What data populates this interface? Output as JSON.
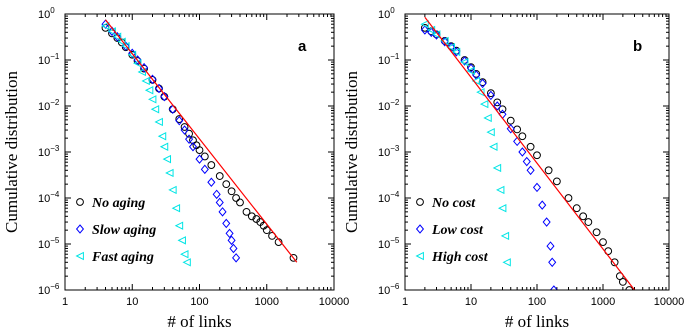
{
  "chart_data": [
    {
      "type": "scatter",
      "panel_label": "a",
      "xlabel": "# of links",
      "ylabel": "Cumulative distribution",
      "xscale": "log",
      "yscale": "log",
      "xlim": [
        1,
        10000
      ],
      "ylim": [
        1e-06,
        1
      ],
      "legend_position": "bottom-left",
      "series": [
        {
          "name": "No aging",
          "marker": "circle",
          "color": "#000000",
          "x": [
            4,
            5,
            6,
            7,
            8,
            10,
            12,
            15,
            20,
            25,
            30,
            40,
            50,
            60,
            70,
            80,
            90,
            100,
            120,
            150,
            200,
            250,
            300,
            350,
            400,
            500,
            600,
            700,
            800,
            900,
            1000,
            1200,
            1500,
            2500
          ],
          "y": [
            0.5,
            0.38,
            0.3,
            0.24,
            0.19,
            0.13,
            0.095,
            0.065,
            0.037,
            0.024,
            0.016,
            0.0085,
            0.0052,
            0.0035,
            0.0025,
            0.0018,
            0.0014,
            0.0011,
            0.0008,
            0.00052,
            0.0003,
            0.0002,
            0.00014,
            0.0001,
            8e-05,
            5e-05,
            4e-05,
            3.5e-05,
            3e-05,
            2.5e-05,
            2e-05,
            1.5e-05,
            1.1e-05,
            5e-06
          ]
        },
        {
          "name": "Slow aging",
          "marker": "diamond",
          "color": "#0000ff",
          "x": [
            4,
            5,
            6,
            8,
            10,
            12,
            15,
            20,
            25,
            30,
            40,
            50,
            60,
            70,
            80,
            100,
            120,
            150,
            180,
            200,
            220,
            250,
            280,
            300,
            320,
            350
          ],
          "y": [
            0.6,
            0.42,
            0.32,
            0.2,
            0.14,
            0.1,
            0.068,
            0.038,
            0.024,
            0.016,
            0.0085,
            0.0048,
            0.003,
            0.0019,
            0.0013,
            0.0007,
            0.00042,
            0.00022,
            0.00012,
            8e-05,
            5e-05,
            2.8e-05,
            1.7e-05,
            1.2e-05,
            8e-06,
            5e-06
          ]
        },
        {
          "name": "Fast aging",
          "marker": "triangle-left",
          "color": "#00e5e5",
          "x": [
            4,
            5,
            6,
            7,
            8,
            10,
            12,
            14,
            16,
            18,
            20,
            22,
            25,
            28,
            30,
            33,
            36,
            40,
            45,
            50,
            55,
            60,
            65
          ],
          "y": [
            0.55,
            0.42,
            0.32,
            0.25,
            0.2,
            0.13,
            0.085,
            0.055,
            0.035,
            0.022,
            0.014,
            0.0085,
            0.0045,
            0.0022,
            0.0013,
            0.0007,
            0.00035,
            0.00015,
            6e-05,
            2.5e-05,
            1.2e-05,
            6e-06,
            4e-06
          ]
        },
        {
          "name": "fit",
          "type": "line",
          "color": "#ff0000",
          "x": [
            4,
            2800
          ],
          "y": [
            0.75,
            4e-06
          ]
        }
      ]
    },
    {
      "type": "scatter",
      "panel_label": "b",
      "xlabel": "# of links",
      "ylabel": "Cumulative distribution",
      "xscale": "log",
      "yscale": "log",
      "xlim": [
        1,
        10000
      ],
      "ylim": [
        1e-06,
        1
      ],
      "legend_position": "bottom-left",
      "series": [
        {
          "name": "No cost",
          "marker": "circle",
          "color": "#000000",
          "x": [
            2,
            2.5,
            3,
            4,
            5,
            6,
            8,
            10,
            12,
            15,
            20,
            25,
            30,
            40,
            50,
            60,
            80,
            100,
            150,
            200,
            300,
            400,
            500,
            600,
            800,
            1000,
            1200,
            1500,
            1800,
            2000,
            2500
          ],
          "y": [
            0.5,
            0.42,
            0.36,
            0.26,
            0.2,
            0.16,
            0.1,
            0.07,
            0.05,
            0.033,
            0.019,
            0.012,
            0.0085,
            0.0048,
            0.0031,
            0.0022,
            0.0013,
            0.00085,
            0.0004,
            0.00023,
            0.0001,
            6e-05,
            4e-05,
            3e-05,
            1.8e-05,
            1.1e-05,
            7e-06,
            4e-06,
            2e-06,
            1.5e-06,
            1e-06
          ]
        },
        {
          "name": "Low cost",
          "marker": "diamond",
          "color": "#0000ff",
          "x": [
            2,
            2.5,
            3,
            4,
            5,
            6,
            8,
            10,
            12,
            15,
            20,
            25,
            30,
            40,
            50,
            60,
            70,
            80,
            100,
            120,
            140,
            160,
            170,
            180
          ],
          "y": [
            0.45,
            0.4,
            0.35,
            0.25,
            0.19,
            0.15,
            0.095,
            0.066,
            0.047,
            0.031,
            0.017,
            0.01,
            0.0066,
            0.0032,
            0.0017,
            0.001,
            0.00062,
            0.0004,
            0.00017,
            7e-05,
            3e-05,
            9e-06,
            4e-06,
            1e-06
          ]
        },
        {
          "name": "High cost",
          "marker": "triangle-left",
          "color": "#00e5e5",
          "x": [
            2,
            2.5,
            3,
            4,
            5,
            6,
            8,
            10,
            12,
            14,
            16,
            18,
            20,
            22,
            25,
            28,
            30,
            33,
            35
          ],
          "y": [
            0.6,
            0.45,
            0.36,
            0.26,
            0.19,
            0.15,
            0.09,
            0.058,
            0.035,
            0.02,
            0.011,
            0.0055,
            0.0027,
            0.0013,
            0.00045,
            0.00015,
            6e-05,
            1.5e-05,
            4e-06
          ]
        },
        {
          "name": "fit",
          "type": "line",
          "color": "#ff0000",
          "x": [
            2,
            3000
          ],
          "y": [
            0.85,
            1e-06
          ]
        }
      ]
    }
  ]
}
